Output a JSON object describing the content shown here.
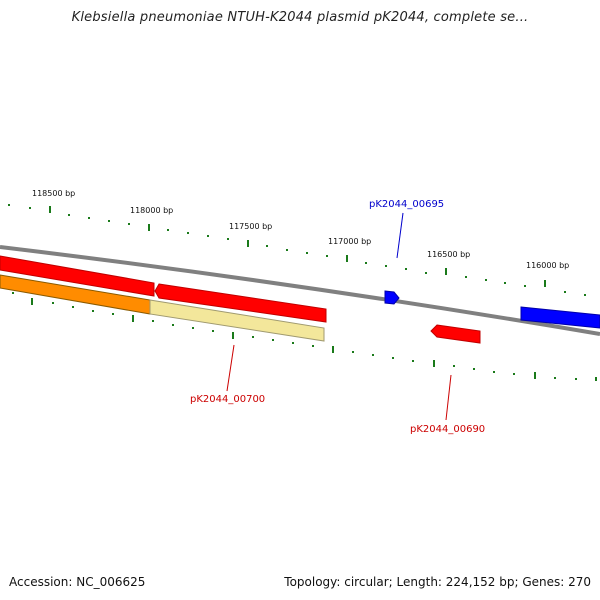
{
  "title": "Klebsiella pneumoniae NTUH-K2044 plasmid pK2044, complete se...",
  "footer": {
    "accession": "Accession: NC_006625",
    "summary": "Topology: circular; Length: 224,152 bp; Genes: 270"
  },
  "ticks": [
    {
      "label": "118500 bp"
    },
    {
      "label": "118000 bp"
    },
    {
      "label": "117500 bp"
    },
    {
      "label": "117000 bp"
    },
    {
      "label": "116500 bp"
    },
    {
      "label": "116000 bp"
    }
  ],
  "genes": [
    {
      "label": "pK2044_00695",
      "color": "#0000cc"
    },
    {
      "label": "pK2044_00700",
      "color": "#cc0000"
    },
    {
      "label": "pK2044_00690",
      "color": "#cc0000"
    }
  ],
  "colors": {
    "backbone": "#808080",
    "forward_feature": "#ff0000",
    "reverse_feature": "#0000ff",
    "orange_feature": "#ff8c00",
    "yellow_feature": "#f3e79b",
    "tick": "#1a7a1a"
  }
}
